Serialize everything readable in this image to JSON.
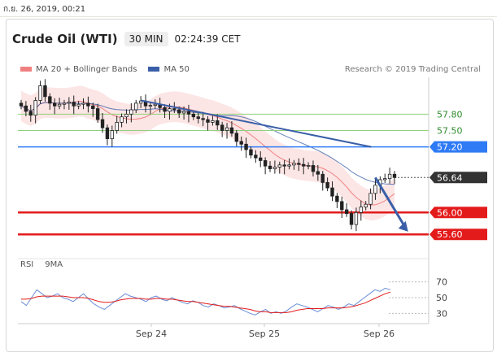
{
  "header": {
    "timestamp": "ก.ย. 26, 2019, 00:21",
    "symbol": "Crude Oil (WTI)",
    "timeframe": "30 MIN",
    "time": "02:24:39 CET",
    "research": "Research © 2019 Trading Central"
  },
  "legend": {
    "ma20_label": "MA 20 + Bollinger Bands",
    "ma50_label": "MA 50",
    "rsi_label": "RSI",
    "ma9_label": "9MA"
  },
  "colors": {
    "ma20": "#f08080",
    "ma50": "#3a5fa8",
    "band_fill": "#fbe0e0",
    "candle": "#222222",
    "support": "#e31b1b",
    "resistance_blue": "#2f7bf5",
    "green": "#8fd17a",
    "rsi": "#6a8fd6",
    "rsi_ma": "#e31b1b"
  },
  "chart_data": [
    {
      "type": "line",
      "title": "Crude Oil (WTI)",
      "x_tick_labels": [
        "Sep 24",
        "Sep 25",
        "Sep 26"
      ],
      "ylim": [
        55.35,
        58.4
      ],
      "levels": [
        {
          "value": 57.8,
          "label": "57.80",
          "style": "green-line"
        },
        {
          "value": 57.5,
          "label": "57.50",
          "style": "green-line"
        },
        {
          "value": 57.2,
          "label": "57.20",
          "style": "blue-line"
        },
        {
          "value": 56.64,
          "label": "56.64",
          "style": "current-price"
        },
        {
          "value": 56.0,
          "label": "56.00",
          "style": "red-line"
        },
        {
          "value": 55.6,
          "label": "55.60",
          "style": "red-line"
        }
      ],
      "trendline": {
        "from": [
          0.3,
          58.05
        ],
        "to": [
          0.86,
          57.2
        ]
      },
      "forecast_arrow": {
        "from": [
          0.87,
          56.64
        ],
        "to": [
          0.95,
          55.65
        ]
      },
      "price_series": [
        57.95,
        57.85,
        57.78,
        58.05,
        58.32,
        58.12,
        58.0,
        57.95,
        57.98,
        58.0,
        58.02,
        57.95,
        57.98,
        58.0,
        57.95,
        57.9,
        57.7,
        57.55,
        57.35,
        57.5,
        57.65,
        57.75,
        57.8,
        57.88,
        58.0,
        58.04,
        57.95,
        57.96,
        57.98,
        57.92,
        57.85,
        57.9,
        57.88,
        57.82,
        57.85,
        57.8,
        57.75,
        57.72,
        57.7,
        57.65,
        57.68,
        57.6,
        57.5,
        57.55,
        57.45,
        57.3,
        57.25,
        57.15,
        57.05,
        57.0,
        56.95,
        56.85,
        56.8,
        56.83,
        56.87,
        56.85,
        56.87,
        56.9,
        56.88,
        56.85,
        56.86,
        56.75,
        56.7,
        56.55,
        56.45,
        56.3,
        56.2,
        56.05,
        55.98,
        55.78,
        56.0,
        56.1,
        56.15,
        56.35,
        56.5,
        56.6,
        56.62,
        56.7,
        56.64
      ]
    },
    {
      "type": "line",
      "title": "RSI",
      "ylim": [
        20,
        80
      ],
      "y_ticks": [
        70,
        50,
        30
      ],
      "series": [
        {
          "name": "RSI",
          "values": [
            45,
            40,
            50,
            60,
            55,
            50,
            52,
            55,
            50,
            48,
            45,
            50,
            55,
            48,
            42,
            38,
            35,
            40,
            45,
            50,
            55,
            52,
            50,
            48,
            45,
            50,
            52,
            48,
            46,
            50,
            47,
            44,
            42,
            46,
            44,
            40,
            38,
            42,
            40,
            37,
            38,
            40,
            36,
            33,
            30,
            28,
            32,
            35,
            30,
            32,
            30,
            33,
            38,
            42,
            40,
            38,
            35,
            32,
            36,
            40,
            38,
            35,
            38,
            42,
            40,
            45,
            50,
            55,
            60,
            58,
            62,
            60
          ]
        },
        {
          "name": "9MA",
          "values": [
            48,
            48,
            49,
            51,
            52,
            52,
            52,
            52,
            52,
            51,
            50,
            50,
            50,
            49,
            47,
            45,
            44,
            44,
            45,
            47,
            48,
            49,
            49,
            49,
            48,
            48,
            49,
            49,
            48,
            48,
            47,
            46,
            45,
            45,
            44,
            43,
            42,
            41,
            40,
            39,
            39,
            38,
            37,
            36,
            35,
            33,
            32,
            32,
            31,
            31,
            31,
            31,
            32,
            34,
            35,
            36,
            36,
            36,
            36,
            37,
            37,
            37,
            37,
            38,
            39,
            41,
            43,
            46,
            49,
            52,
            55,
            57
          ]
        }
      ]
    }
  ]
}
